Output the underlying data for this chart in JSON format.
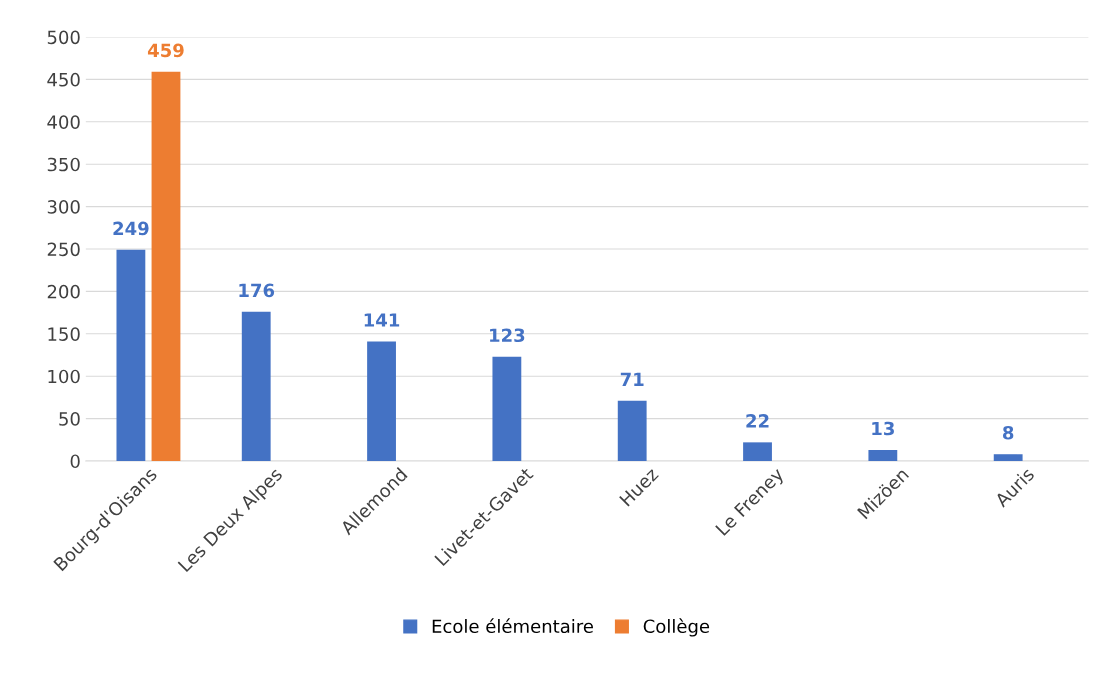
{
  "chart_data": {
    "type": "bar",
    "categories": [
      "Bourg-d'Oisans",
      "Les Deux Alpes",
      "Allemond",
      "Livet-et-Gavet",
      "Huez",
      "Le Freney",
      "Mizöen",
      "Auris"
    ],
    "series": [
      {
        "name": "Ecole élémentaire",
        "color": "#4472c4",
        "values": [
          249,
          176,
          141,
          123,
          71,
          22,
          13,
          8
        ]
      },
      {
        "name": "Collège",
        "color": "#ed7d31",
        "values": [
          459,
          null,
          null,
          null,
          null,
          null,
          null,
          null
        ]
      }
    ],
    "ylim": [
      0,
      500
    ],
    "yticks": [
      0,
      50,
      100,
      150,
      200,
      250,
      300,
      350,
      400,
      450,
      500
    ],
    "grid": "y",
    "legend": "bottom",
    "data_labels": true
  }
}
